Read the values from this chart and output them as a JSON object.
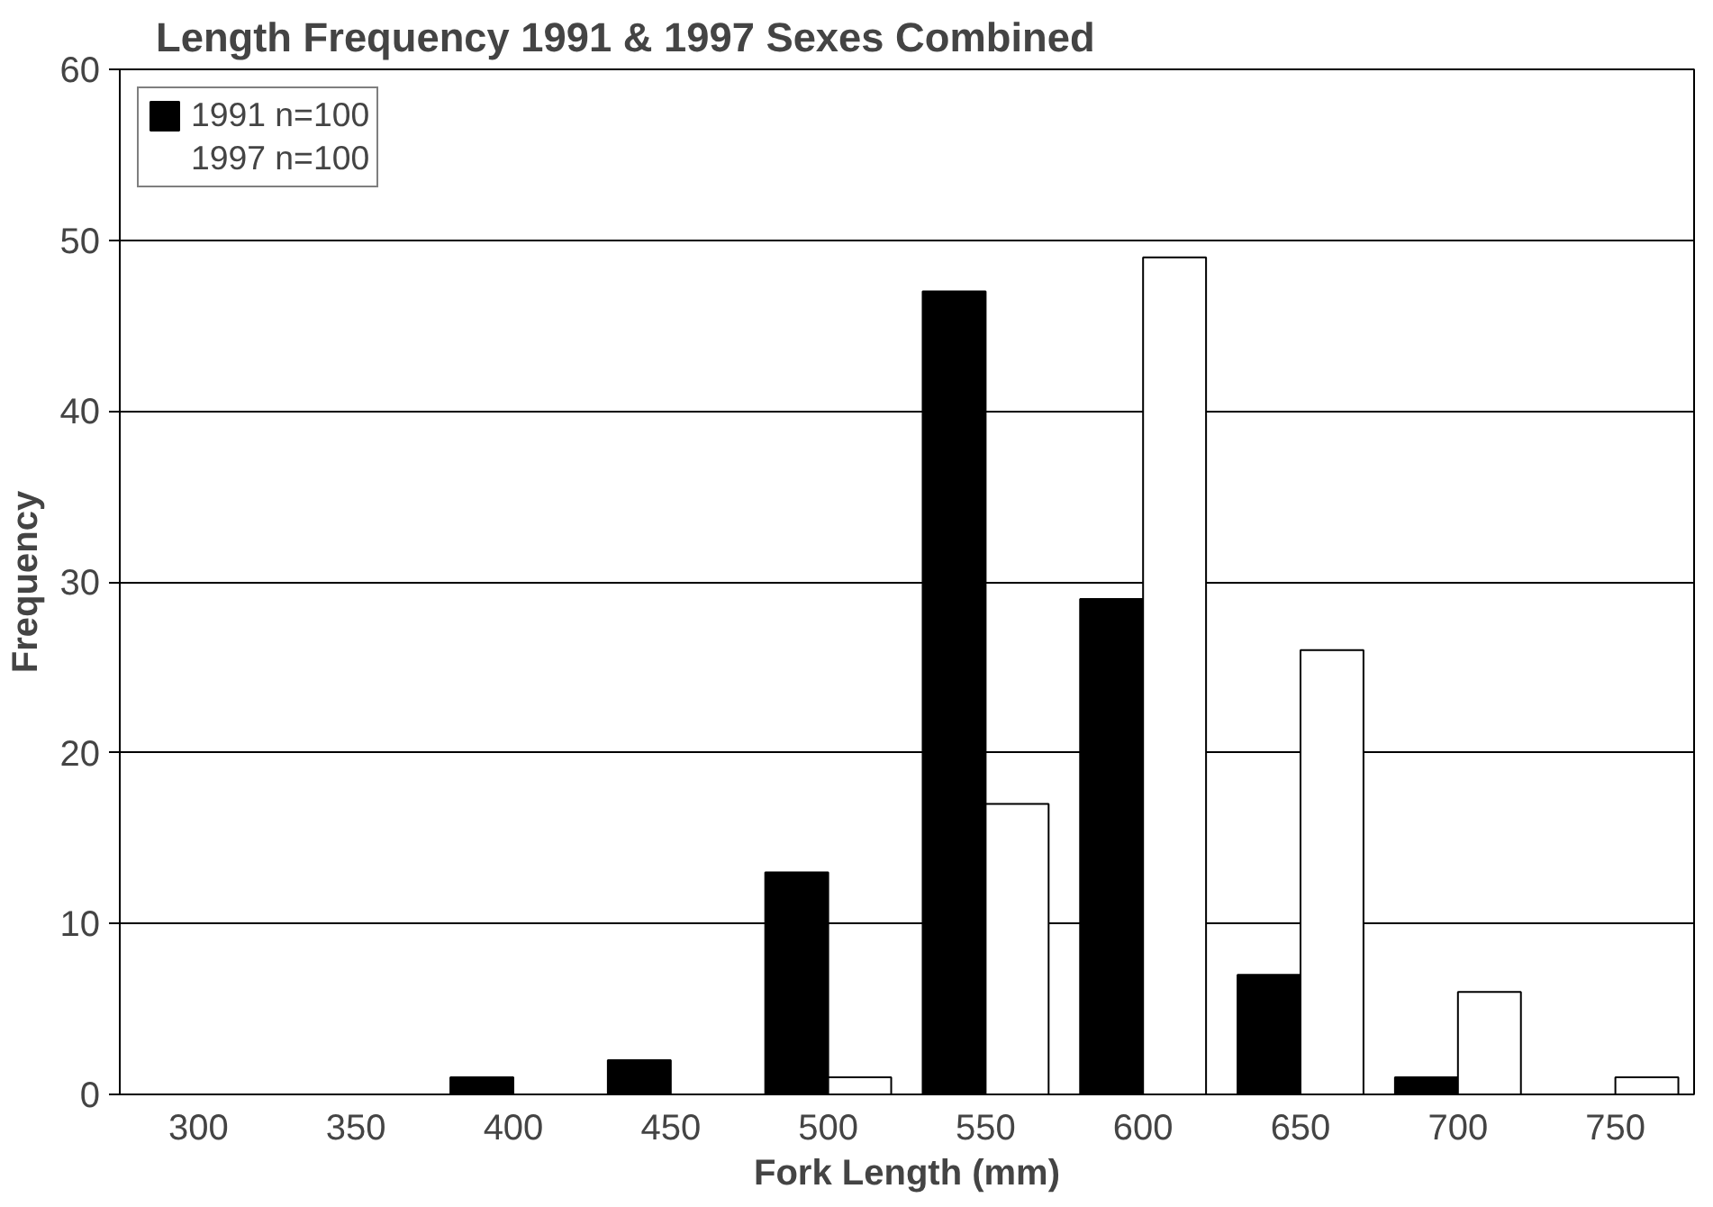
{
  "chart_data": {
    "type": "bar",
    "title": "Length Frequency 1991 & 1997 Sexes Combined",
    "xlabel": "Fork Length (mm)",
    "ylabel": "Frequency",
    "categories": [
      "300",
      "350",
      "400",
      "450",
      "500",
      "550",
      "600",
      "650",
      "700",
      "750"
    ],
    "series": [
      {
        "name": "1991 n=100",
        "color": "#000000",
        "values": [
          0,
          0,
          1,
          2,
          13,
          47,
          29,
          7,
          1,
          0
        ]
      },
      {
        "name": "1997 n=100",
        "color": "#ffffff",
        "values": [
          0,
          0,
          0,
          0,
          1,
          17,
          49,
          26,
          6,
          1
        ]
      }
    ],
    "ylim": [
      0,
      60
    ],
    "yticks": [
      0,
      10,
      20,
      30,
      40,
      50,
      60
    ],
    "grid": "y",
    "legend": "top left"
  }
}
